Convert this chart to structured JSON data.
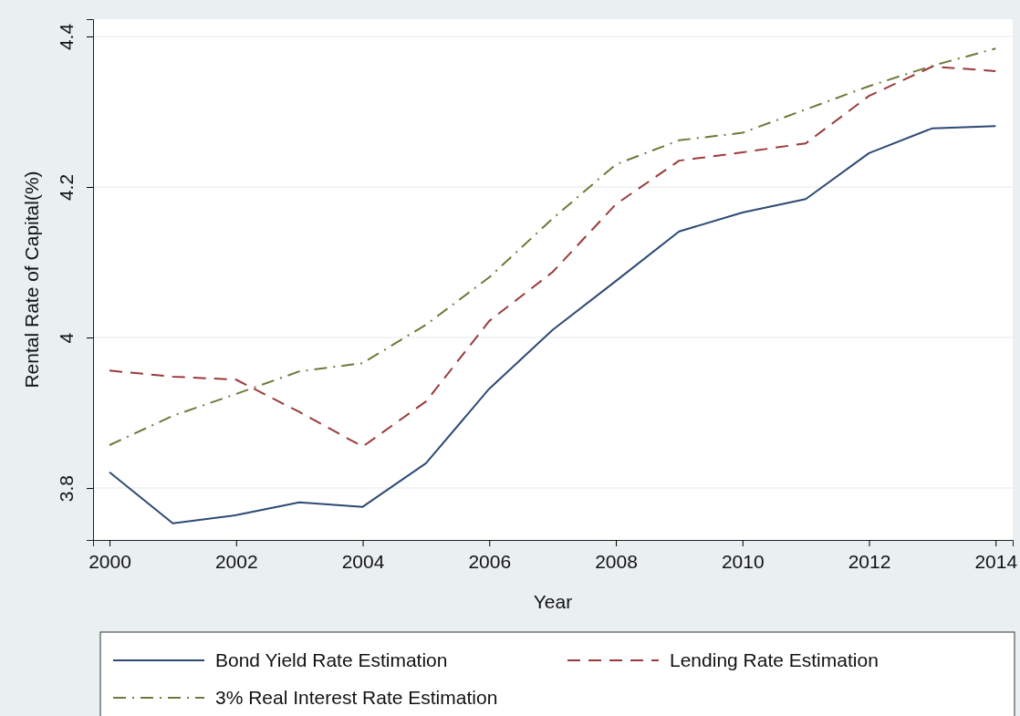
{
  "chart_data": {
    "type": "line",
    "xlabel": "Year",
    "ylabel": "Rental Rate of Capital(%)",
    "x": [
      2000,
      2001,
      2002,
      2003,
      2004,
      2005,
      2006,
      2007,
      2008,
      2009,
      2010,
      2011,
      2012,
      2013,
      2014
    ],
    "series": [
      {
        "name": "Bond Yield Rate Estimation",
        "color": "#2d4a75",
        "line_style": "solid",
        "values": [
          3.821,
          3.753,
          3.764,
          3.781,
          3.775,
          3.833,
          3.932,
          4.01,
          4.075,
          4.141,
          4.166,
          4.184,
          4.245,
          4.278,
          4.281
        ]
      },
      {
        "name": "Lending Rate Estimation",
        "color": "#9b3a3a",
        "line_style": "dashed",
        "values": [
          3.956,
          3.948,
          3.944,
          3.901,
          3.855,
          3.915,
          4.022,
          4.087,
          4.177,
          4.235,
          4.246,
          4.258,
          4.321,
          4.36,
          4.354
        ]
      },
      {
        "name": "3% Real Interest Rate Estimation",
        "color": "#6b7a3a",
        "line_style": "dashdot",
        "values": [
          3.857,
          3.896,
          3.925,
          3.955,
          3.966,
          4.017,
          4.08,
          4.158,
          4.23,
          4.262,
          4.272,
          4.303,
          4.334,
          4.361,
          4.384
        ]
      }
    ],
    "xlim": [
      1999.74,
      2014.27
    ],
    "ylim": [
      3.731,
      4.423
    ],
    "xticks": [
      2000,
      2002,
      2004,
      2006,
      2008,
      2010,
      2012,
      2014
    ],
    "yticks": [
      3.8,
      {
        "value": 4.0,
        "label": "4"
      },
      4.2,
      4.4
    ],
    "grid": "y",
    "legend": "bottom",
    "marker": "none"
  }
}
